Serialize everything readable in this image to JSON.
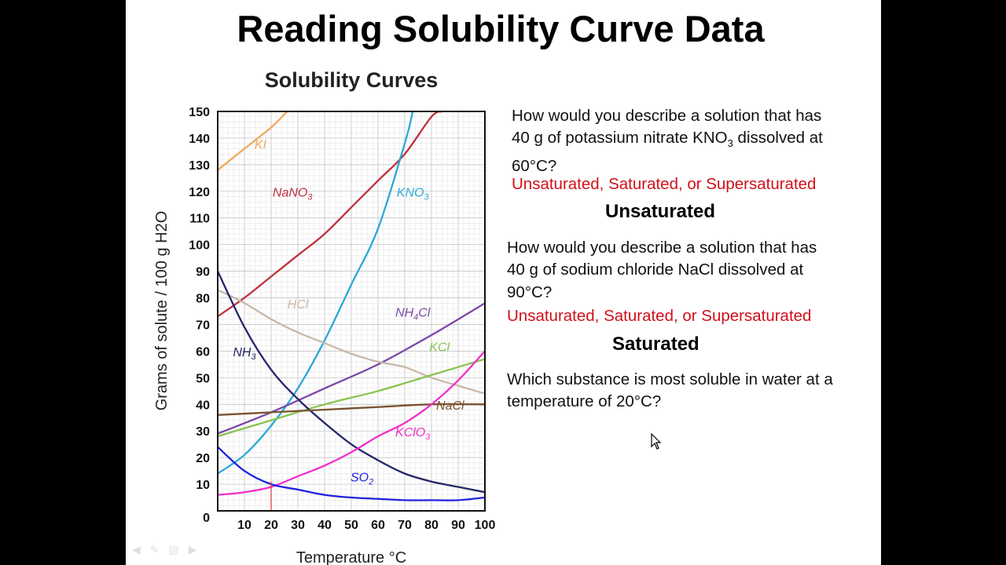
{
  "slide": {
    "title": "Reading Solubility Curve Data"
  },
  "questions": [
    {
      "lines": [
        "How would you describe a solution  that has",
        "40 g of potassium nitrate KNO",
        "60",
        "C?"
      ],
      "sub": "3",
      "line2_end": " dissolved at",
      "deg": "°"
    },
    {
      "lines": [
        "How would you describe a solution  that has",
        "40 g of sodium chloride NaCl dissolved at",
        "90",
        "C?"
      ],
      "deg": "°"
    },
    {
      "lines": [
        "Which substance is most soluble in water at a",
        "temperature of  20",
        "C?"
      ],
      "deg": "°"
    }
  ],
  "options_text": "Unsaturated, Saturated, or Supersaturated",
  "answers": [
    "Unsaturated",
    "Saturated"
  ],
  "nav_icons": [
    "back-arrow-icon",
    "pen-icon",
    "slides-icon",
    "forward-arrow-icon"
  ],
  "chart_data": {
    "type": "line",
    "title": "Solubility Curves",
    "xlabel": "Temperature °C",
    "ylabel": "Grams of solute / 100 g H2O",
    "xlim": [
      0,
      100
    ],
    "ylim": [
      0,
      150
    ],
    "x_ticks": [
      "10",
      "20",
      "30",
      "40",
      "50",
      "60",
      "70",
      "80",
      "90",
      "100"
    ],
    "y_ticks": [
      "0",
      "10",
      "20",
      "30",
      "40",
      "50",
      "60",
      "70",
      "80",
      "90",
      "100",
      "110",
      "120",
      "130",
      "140",
      "150"
    ],
    "series": [
      {
        "name": "KI",
        "label_parts": [
          "KI"
        ],
        "color": "#f0a85a",
        "label_at": [
          16,
          136
        ],
        "points": [
          [
            0,
            128
          ],
          [
            10,
            136
          ],
          [
            20,
            144
          ],
          [
            26,
            150
          ]
        ]
      },
      {
        "name": "NaNO3",
        "label_parts": [
          "NaNO",
          "3"
        ],
        "color": "#c0303e",
        "label_at": [
          28,
          118
        ],
        "points": [
          [
            0,
            73
          ],
          [
            10,
            80
          ],
          [
            20,
            88
          ],
          [
            30,
            96
          ],
          [
            40,
            104
          ],
          [
            50,
            114
          ],
          [
            60,
            124
          ],
          [
            70,
            134
          ],
          [
            80,
            148
          ],
          [
            84,
            150
          ]
        ]
      },
      {
        "name": "KNO3",
        "label_parts": [
          "KNO",
          "3"
        ],
        "color": "#2aa8d8",
        "label_at": [
          73,
          118
        ],
        "points": [
          [
            0,
            14
          ],
          [
            10,
            21
          ],
          [
            20,
            32
          ],
          [
            30,
            46
          ],
          [
            40,
            64
          ],
          [
            50,
            85
          ],
          [
            60,
            106
          ],
          [
            70,
            138
          ],
          [
            73,
            150
          ]
        ]
      },
      {
        "name": "NH4Cl",
        "label_parts": [
          "NH",
          "4",
          "Cl"
        ],
        "color": "#7a48a8",
        "label_at": [
          73,
          73
        ],
        "points": [
          [
            0,
            29
          ],
          [
            20,
            37
          ],
          [
            40,
            46
          ],
          [
            60,
            55
          ],
          [
            80,
            66
          ],
          [
            100,
            78
          ]
        ]
      },
      {
        "name": "HCl",
        "label_parts": [
          "HCl"
        ],
        "color": "#c8b8a8",
        "label_at": [
          30,
          76
        ],
        "points": [
          [
            0,
            83
          ],
          [
            10,
            78
          ],
          [
            20,
            72
          ],
          [
            30,
            67
          ],
          [
            40,
            63
          ],
          [
            50,
            59
          ],
          [
            60,
            56
          ],
          [
            70,
            54
          ],
          [
            80,
            50
          ],
          [
            90,
            47
          ],
          [
            100,
            44
          ]
        ]
      },
      {
        "name": "KCl",
        "label_parts": [
          "KCl"
        ],
        "color": "#88c450",
        "label_at": [
          83,
          60
        ],
        "points": [
          [
            0,
            28
          ],
          [
            20,
            34
          ],
          [
            40,
            40
          ],
          [
            60,
            45
          ],
          [
            80,
            51
          ],
          [
            100,
            57
          ]
        ]
      },
      {
        "name": "NH3",
        "label_parts": [
          "NH",
          "3"
        ],
        "color": "#242668",
        "label_at": [
          10,
          58
        ],
        "points": [
          [
            0,
            90
          ],
          [
            10,
            69
          ],
          [
            20,
            53
          ],
          [
            30,
            42
          ],
          [
            40,
            33
          ],
          [
            50,
            25
          ],
          [
            60,
            19
          ],
          [
            70,
            14
          ],
          [
            80,
            11
          ],
          [
            90,
            9
          ],
          [
            100,
            7
          ]
        ]
      },
      {
        "name": "NaCl",
        "label_parts": [
          "NaCl"
        ],
        "color": "#7a5230",
        "label_at": [
          87,
          38
        ],
        "points": [
          [
            0,
            36
          ],
          [
            20,
            37
          ],
          [
            40,
            38
          ],
          [
            60,
            39
          ],
          [
            80,
            40
          ],
          [
            100,
            40
          ]
        ]
      },
      {
        "name": "KClO3",
        "label_parts": [
          "KClO",
          "3"
        ],
        "color": "#f030c8",
        "label_at": [
          73,
          28
        ],
        "points": [
          [
            0,
            6
          ],
          [
            10,
            7
          ],
          [
            20,
            9
          ],
          [
            30,
            13
          ],
          [
            40,
            17
          ],
          [
            50,
            22
          ],
          [
            60,
            28
          ],
          [
            70,
            33
          ],
          [
            80,
            40
          ],
          [
            90,
            49
          ],
          [
            100,
            60
          ]
        ]
      },
      {
        "name": "SO2",
        "label_parts": [
          "SO",
          "2"
        ],
        "color": "#2020e0",
        "label_at": [
          54,
          11
        ],
        "points": [
          [
            0,
            24
          ],
          [
            10,
            15
          ],
          [
            20,
            10
          ],
          [
            30,
            8
          ],
          [
            40,
            6
          ],
          [
            50,
            5
          ],
          [
            60,
            4.5
          ],
          [
            70,
            4
          ],
          [
            80,
            4
          ],
          [
            90,
            4
          ],
          [
            100,
            5
          ]
        ]
      }
    ],
    "marker_line": {
      "x": 20,
      "y_top": 11,
      "color": "#e03030"
    }
  }
}
